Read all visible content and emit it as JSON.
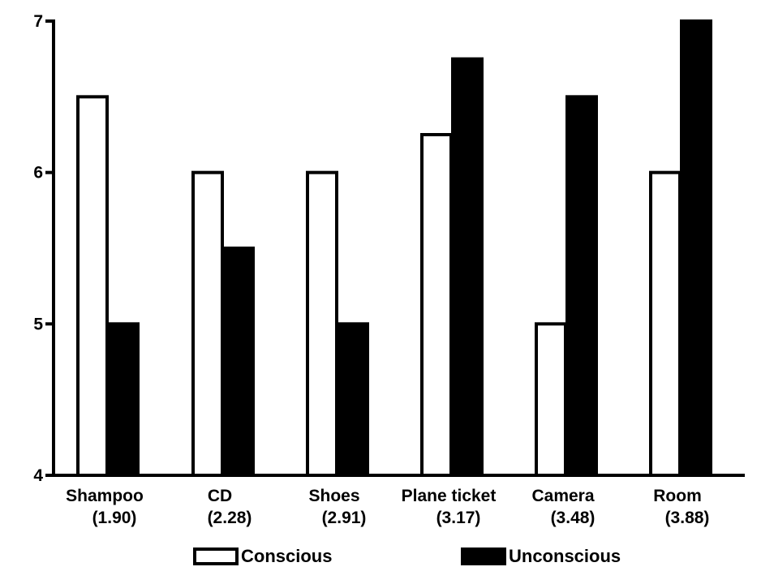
{
  "chart_data": {
    "type": "bar",
    "title": "",
    "xlabel": "",
    "ylabel": "",
    "ylim": [
      4,
      7
    ],
    "yticks": [
      4,
      5,
      6,
      7
    ],
    "categories": [
      {
        "name": "Shampoo",
        "sub": "(1.90)"
      },
      {
        "name": "CD",
        "sub": "(2.28)"
      },
      {
        "name": "Shoes",
        "sub": "(2.91)"
      },
      {
        "name": "Plane ticket",
        "sub": "(3.17)"
      },
      {
        "name": "Camera",
        "sub": "(3.48)"
      },
      {
        "name": "Room",
        "sub": "(3.88)"
      }
    ],
    "series": [
      {
        "name": "Conscious",
        "fill": "#ffffff",
        "values": [
          6.5,
          6.0,
          6.0,
          6.25,
          5.0,
          6.0
        ]
      },
      {
        "name": "Unconscious",
        "fill": "#000000",
        "values": [
          5.0,
          5.5,
          5.0,
          6.75,
          6.5,
          7.0
        ]
      }
    ],
    "legend": "bottom",
    "grid": false
  }
}
